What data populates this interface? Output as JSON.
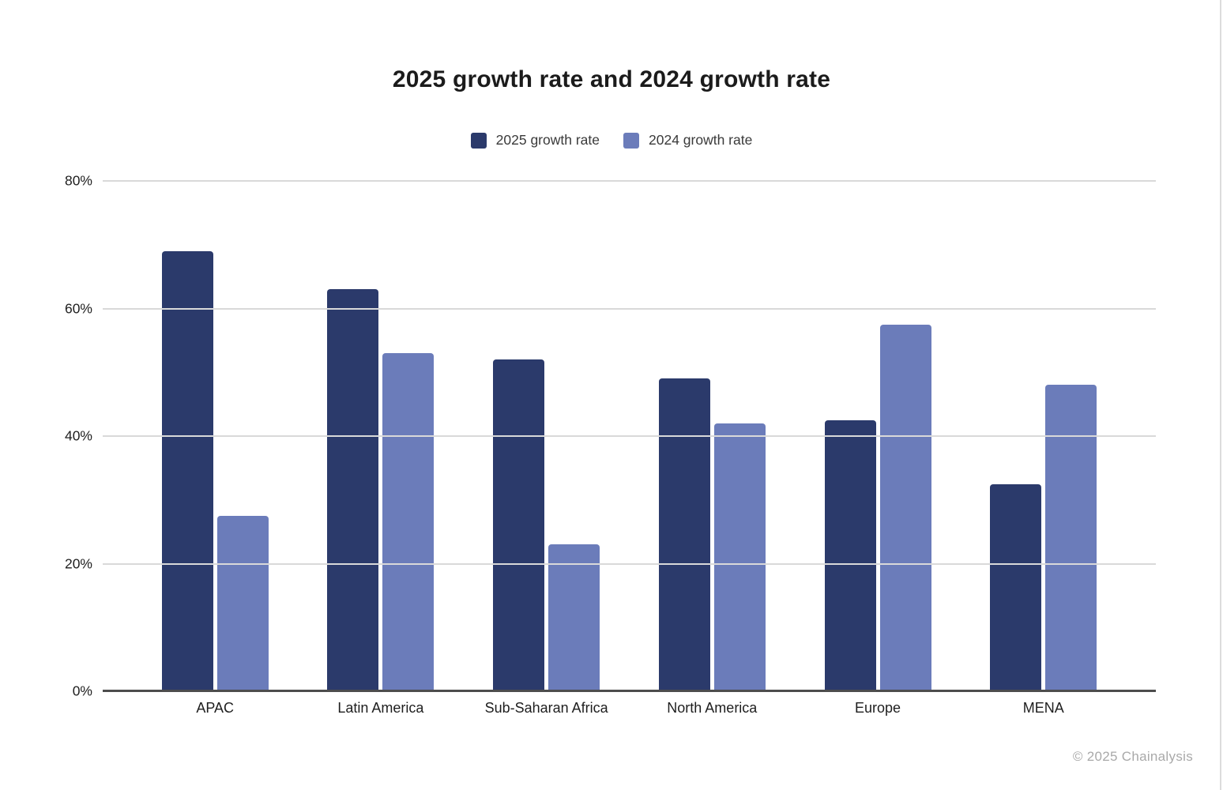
{
  "chart": {
    "title": "2025 growth rate and 2024 growth rate",
    "watermark": "© 2025 Chainalysis",
    "colors": {
      "series_2025": "#2b3a6b",
      "series_2024": "#6b7cba",
      "gridline": "#d9d9d9",
      "axis_line": "#4d4d4d",
      "title_text": "#1b1b1b",
      "tick_text": "#1e1e1e",
      "watermark_text": "#a9a9a9"
    }
  },
  "chart_data": {
    "type": "bar",
    "title": "2025 growth rate and 2024 growth rate",
    "categories": [
      "APAC",
      "Latin America",
      "Sub-Saharan Africa",
      "North America",
      "Europe",
      "MENA"
    ],
    "series": [
      {
        "name": "2025 growth rate",
        "color": "#2b3a6b",
        "values": [
          69,
          63,
          52,
          49,
          42.5,
          32.5
        ]
      },
      {
        "name": "2024 growth rate",
        "color": "#6b7cba",
        "values": [
          27.5,
          53,
          23,
          42,
          57.5,
          48
        ]
      }
    ],
    "xlabel": "",
    "ylabel": "",
    "ylim": [
      0,
      80
    ],
    "yticks": [
      "0%",
      "20%",
      "40%",
      "60%",
      "80%"
    ],
    "grid": true,
    "legend_position": "top"
  }
}
